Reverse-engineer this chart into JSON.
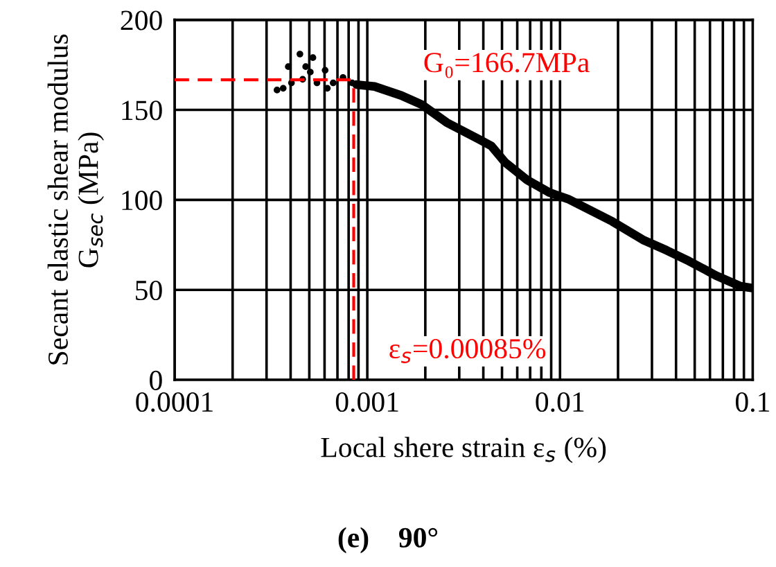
{
  "chart_data": {
    "type": "scatter",
    "title": "(e)    90°",
    "xlabel": "Local shere strain ε$_{s}$ (%)",
    "ylabel": "Secant elastic shear modulus\nG$_{sec}$ (MPa)",
    "log": "x",
    "xlim": [
      0.0001,
      0.1
    ],
    "xticks": [
      0.0001,
      0.001,
      0.01,
      0.1
    ],
    "ylim": [
      0,
      200
    ],
    "yticks": [
      0,
      50,
      100,
      150,
      200
    ],
    "grid": true,
    "series": [
      {
        "marker": "circle",
        "color": "#000000",
        "x": [
          0.00034,
          0.000366,
          0.000389,
          0.000404,
          0.000447,
          0.000479,
          0.000462,
          0.000522,
          0.000506,
          0.000548,
          0.000604,
          0.00062,
          0.000665,
          0.000748,
          0.000834
        ],
        "values": [
          161,
          162,
          174,
          165,
          181,
          174,
          167,
          179,
          171,
          165,
          172,
          162,
          165,
          168,
          165
        ]
      },
      {
        "type": "line",
        "marker": "none",
        "color": "#000000",
        "x": [
          0.00088,
          0.00109,
          0.0015,
          0.00191,
          0.00258,
          0.00374,
          0.0044,
          0.00517,
          0.00676,
          0.00884,
          0.011,
          0.0187,
          0.0273,
          0.0357,
          0.0467,
          0.0644,
          0.0865,
          0.1
        ],
        "values": [
          164,
          163,
          158,
          153,
          143,
          134,
          130,
          121,
          111,
          104,
          100.5,
          88,
          77.5,
          72,
          66,
          58,
          52,
          51
        ]
      }
    ],
    "ref_lines": [
      {
        "axis": "y",
        "value": 166.7,
        "color": "#ff0000",
        "line_style": "dashed"
      },
      {
        "axis": "x",
        "value": 0.00085,
        "color": "#ff0000",
        "line_style": "dashed"
      }
    ],
    "annotations": [
      "G₀=166.7MPa",
      "ε$_{s}$=0.00085%"
    ]
  }
}
